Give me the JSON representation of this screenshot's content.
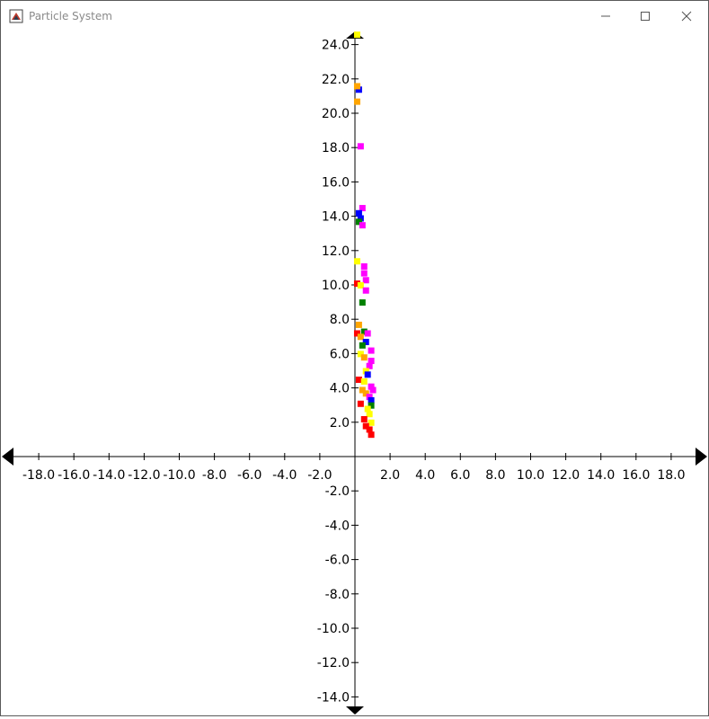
{
  "window": {
    "title": "Particle System"
  },
  "icons": {
    "app": "java-app-icon",
    "minimize": "minimize-icon",
    "maximize": "maximize-icon",
    "close": "close-icon"
  },
  "chart_data": {
    "type": "scatter",
    "title": "",
    "xlabel": "",
    "ylabel": "",
    "xlim": [
      -20,
      20
    ],
    "ylim": [
      -15,
      25
    ],
    "x_ticks": [
      -18,
      -16,
      -14,
      -12,
      -10,
      -8,
      -6,
      -4,
      -2,
      2,
      4,
      6,
      8,
      10,
      12,
      14,
      16,
      18
    ],
    "y_ticks": [
      -14,
      -12,
      -10,
      -8,
      -6,
      -4,
      -2,
      2,
      4,
      6,
      8,
      10,
      12,
      14,
      16,
      18,
      20,
      22,
      24
    ],
    "x_tick_labels": [
      "-18.0",
      "-16.0",
      "-14.0",
      "-12.0",
      "-10.0",
      "-8.0",
      "-6.0",
      "-4.0",
      "-2.0",
      "2.0",
      "4.0",
      "6.0",
      "8.0",
      "10.0",
      "12.0",
      "14.0",
      "16.0",
      "18.0"
    ],
    "y_tick_labels": [
      "-14.0",
      "-12.0",
      "-10.0",
      "-8.0",
      "-6.0",
      "-4.0",
      "-2.0",
      "2.0",
      "4.0",
      "6.0",
      "8.0",
      "10.0",
      "12.0",
      "14.0",
      "16.0",
      "18.0",
      "20.0",
      "22.0",
      "24.0"
    ],
    "grid": false,
    "legend": "none",
    "series_colors": {
      "yellow": "#ffff00",
      "blue": "#0000ff",
      "orange": "#ffa500",
      "magenta": "#ff00ff",
      "green": "#008000",
      "red": "#ff0000"
    },
    "points": [
      {
        "x": 0.1,
        "y": 24.6,
        "color": "yellow"
      },
      {
        "x": 0.2,
        "y": 21.4,
        "color": "blue"
      },
      {
        "x": 0.1,
        "y": 21.6,
        "color": "orange"
      },
      {
        "x": 0.1,
        "y": 20.7,
        "color": "orange"
      },
      {
        "x": 0.3,
        "y": 18.1,
        "color": "magenta"
      },
      {
        "x": 0.4,
        "y": 14.5,
        "color": "magenta"
      },
      {
        "x": 0.2,
        "y": 14.2,
        "color": "blue"
      },
      {
        "x": 0.3,
        "y": 13.9,
        "color": "blue"
      },
      {
        "x": 0.2,
        "y": 13.7,
        "color": "green"
      },
      {
        "x": 0.4,
        "y": 13.5,
        "color": "magenta"
      },
      {
        "x": 0.1,
        "y": 11.4,
        "color": "yellow"
      },
      {
        "x": 0.5,
        "y": 11.1,
        "color": "magenta"
      },
      {
        "x": 0.5,
        "y": 10.7,
        "color": "magenta"
      },
      {
        "x": 0.6,
        "y": 10.3,
        "color": "magenta"
      },
      {
        "x": 0.1,
        "y": 10.1,
        "color": "red"
      },
      {
        "x": 0.3,
        "y": 10.0,
        "color": "yellow"
      },
      {
        "x": 0.6,
        "y": 9.7,
        "color": "magenta"
      },
      {
        "x": 0.4,
        "y": 9.0,
        "color": "green"
      },
      {
        "x": 0.2,
        "y": 7.7,
        "color": "orange"
      },
      {
        "x": 0.5,
        "y": 7.3,
        "color": "green"
      },
      {
        "x": 0.7,
        "y": 7.2,
        "color": "magenta"
      },
      {
        "x": 0.1,
        "y": 7.2,
        "color": "red"
      },
      {
        "x": 0.3,
        "y": 7.0,
        "color": "orange"
      },
      {
        "x": 0.6,
        "y": 6.7,
        "color": "blue"
      },
      {
        "x": 0.4,
        "y": 6.5,
        "color": "green"
      },
      {
        "x": 0.9,
        "y": 6.2,
        "color": "magenta"
      },
      {
        "x": 0.3,
        "y": 6.0,
        "color": "yellow"
      },
      {
        "x": 0.5,
        "y": 5.8,
        "color": "orange"
      },
      {
        "x": 0.9,
        "y": 5.6,
        "color": "magenta"
      },
      {
        "x": 0.8,
        "y": 5.3,
        "color": "magenta"
      },
      {
        "x": 0.6,
        "y": 5.0,
        "color": "yellow"
      },
      {
        "x": 0.7,
        "y": 4.8,
        "color": "blue"
      },
      {
        "x": 0.2,
        "y": 4.5,
        "color": "red"
      },
      {
        "x": 0.5,
        "y": 4.4,
        "color": "yellow"
      },
      {
        "x": 0.9,
        "y": 4.1,
        "color": "magenta"
      },
      {
        "x": 1.0,
        "y": 3.9,
        "color": "magenta"
      },
      {
        "x": 0.4,
        "y": 3.9,
        "color": "orange"
      },
      {
        "x": 0.6,
        "y": 3.7,
        "color": "orange"
      },
      {
        "x": 0.8,
        "y": 3.5,
        "color": "magenta"
      },
      {
        "x": 0.9,
        "y": 3.3,
        "color": "blue"
      },
      {
        "x": 0.3,
        "y": 3.1,
        "color": "red"
      },
      {
        "x": 0.9,
        "y": 3.0,
        "color": "green"
      },
      {
        "x": 0.7,
        "y": 2.8,
        "color": "yellow"
      },
      {
        "x": 0.8,
        "y": 2.5,
        "color": "yellow"
      },
      {
        "x": 0.5,
        "y": 2.2,
        "color": "red"
      },
      {
        "x": 0.9,
        "y": 2.0,
        "color": "yellow"
      },
      {
        "x": 0.6,
        "y": 1.8,
        "color": "red"
      },
      {
        "x": 0.8,
        "y": 1.6,
        "color": "red"
      },
      {
        "x": 0.9,
        "y": 1.3,
        "color": "red"
      }
    ]
  }
}
